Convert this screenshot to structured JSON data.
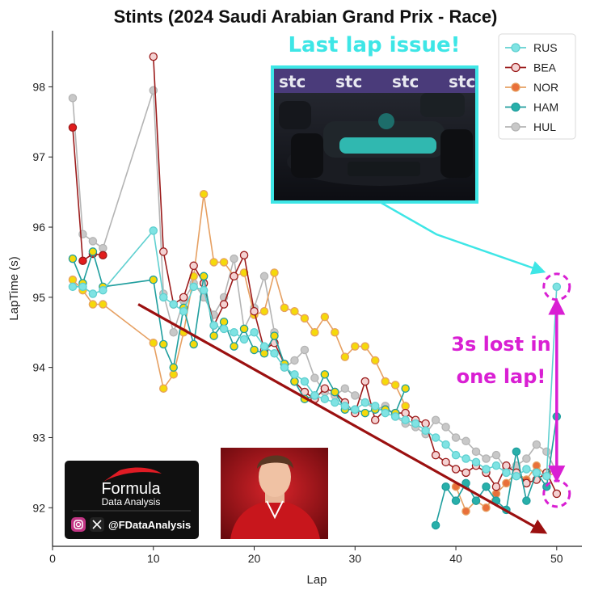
{
  "chart_data": {
    "type": "line",
    "title": "Stints (2024 Saudi Arabian Grand Prix - Race)",
    "xlabel": "Lap",
    "ylabel": "LapTime (s)",
    "xlim": [
      0,
      52.5
    ],
    "ylim": [
      91.45,
      98.8
    ],
    "xticks": [
      0,
      10,
      20,
      30,
      40,
      50
    ],
    "yticks": [
      92,
      93,
      94,
      95,
      96,
      97,
      98
    ],
    "legend_position": "top-right",
    "grid": false,
    "series": [
      {
        "name": "HUL",
        "line_color": "#b4b4b4",
        "segments": [
          {
            "marker_fill": "#c8c8c8",
            "points": [
              [
                2,
                97.84
              ],
              [
                3,
                95.9
              ],
              [
                4,
                95.8
              ],
              [
                5,
                95.7
              ],
              [
                10,
                97.95
              ],
              [
                11,
                95.05
              ],
              [
                12,
                94.5
              ],
              [
                13,
                94.95
              ],
              [
                14,
                95.2
              ],
              [
                15,
                95.0
              ],
              [
                16,
                94.75
              ],
              [
                17,
                95.0
              ],
              [
                18,
                95.55
              ],
              [
                19,
                94.55
              ],
              [
                20,
                94.85
              ],
              [
                21,
                95.3
              ],
              [
                22,
                94.5
              ],
              [
                23,
                94.0
              ],
              [
                24,
                94.1
              ],
              [
                25,
                94.25
              ],
              [
                26,
                93.85
              ],
              [
                27,
                93.65
              ],
              [
                28,
                93.6
              ],
              [
                29,
                93.7
              ],
              [
                30,
                93.6
              ],
              [
                31,
                93.5
              ],
              [
                32,
                93.4
              ],
              [
                33,
                93.45
              ],
              [
                34,
                93.3
              ],
              [
                35,
                93.2
              ],
              [
                36,
                93.15
              ],
              [
                37,
                93.05
              ],
              [
                38,
                93.25
              ],
              [
                39,
                93.15
              ],
              [
                40,
                93.0
              ],
              [
                41,
                92.95
              ],
              [
                42,
                92.8
              ],
              [
                43,
                92.7
              ],
              [
                44,
                92.75
              ],
              [
                45,
                92.55
              ],
              [
                46,
                92.6
              ],
              [
                47,
                92.7
              ],
              [
                48,
                92.9
              ],
              [
                49,
                92.8
              ],
              [
                50,
                92.5
              ]
            ]
          }
        ]
      },
      {
        "name": "NOR",
        "line_color": "#e6a062",
        "segments": [
          {
            "marker_fill": "#f5d90a",
            "points": [
              [
                2,
                95.25
              ],
              [
                3,
                95.1
              ],
              [
                4,
                94.9
              ],
              [
                5,
                94.9
              ],
              [
                10,
                94.35
              ],
              [
                11,
                93.7
              ],
              [
                12,
                93.9
              ],
              [
                13,
                94.5
              ],
              [
                14,
                95.3
              ],
              [
                15,
                96.47
              ],
              [
                16,
                95.5
              ],
              [
                17,
                95.5
              ],
              [
                18,
                95.3
              ],
              [
                19,
                95.35
              ],
              [
                20,
                94.75
              ],
              [
                21,
                94.8
              ],
              [
                22,
                95.35
              ],
              [
                23,
                94.85
              ],
              [
                24,
                94.8
              ],
              [
                25,
                94.7
              ],
              [
                26,
                94.5
              ],
              [
                27,
                94.72
              ],
              [
                28,
                94.5
              ],
              [
                29,
                94.15
              ],
              [
                30,
                94.3
              ],
              [
                31,
                94.3
              ],
              [
                32,
                94.1
              ],
              [
                33,
                93.8
              ],
              [
                34,
                93.75
              ],
              [
                35,
                93.45
              ]
            ]
          },
          {
            "marker_fill": "#e9703a",
            "points": [
              [
                40,
                92.3
              ],
              [
                41,
                91.95
              ],
              [
                42,
                92.1
              ],
              [
                43,
                92.0
              ],
              [
                44,
                92.2
              ],
              [
                45,
                92.35
              ],
              [
                46,
                92.5
              ],
              [
                47,
                92.4
              ],
              [
                48,
                92.6
              ],
              [
                49,
                92.45
              ],
              [
                50,
                92.5
              ]
            ]
          }
        ]
      },
      {
        "name": "BEA",
        "line_color": "#9b1b1b",
        "segments": [
          {
            "marker_fill": "#e11d1d",
            "points": [
              [
                2,
                97.42
              ],
              [
                3,
                95.52
              ],
              [
                4,
                95.62
              ],
              [
                5,
                95.6
              ]
            ]
          },
          {
            "marker_fill": "#f4d2d2",
            "points": [
              [
                10,
                98.43
              ],
              [
                11,
                95.65
              ],
              [
                12,
                94.9
              ],
              [
                13,
                95.0
              ],
              [
                14,
                95.45
              ],
              [
                15,
                95.2
              ],
              [
                16,
                94.6
              ],
              [
                17,
                94.9
              ],
              [
                18,
                95.3
              ],
              [
                19,
                95.6
              ],
              [
                20,
                94.8
              ],
              [
                21,
                94.25
              ],
              [
                22,
                94.35
              ],
              [
                23,
                94.05
              ],
              [
                24,
                93.8
              ],
              [
                25,
                93.65
              ],
              [
                26,
                93.55
              ],
              [
                27,
                93.7
              ],
              [
                28,
                93.65
              ],
              [
                29,
                93.5
              ],
              [
                30,
                93.35
              ],
              [
                31,
                93.8
              ],
              [
                32,
                93.25
              ],
              [
                33,
                93.4
              ],
              [
                34,
                93.35
              ],
              [
                35,
                93.35
              ],
              [
                36,
                93.25
              ],
              [
                37,
                93.2
              ],
              [
                38,
                92.75
              ],
              [
                39,
                92.65
              ],
              [
                40,
                92.55
              ],
              [
                41,
                92.5
              ],
              [
                42,
                92.6
              ],
              [
                43,
                92.5
              ],
              [
                44,
                92.3
              ],
              [
                45,
                92.6
              ],
              [
                46,
                92.5
              ],
              [
                47,
                92.35
              ],
              [
                48,
                92.4
              ],
              [
                49,
                92.5
              ],
              [
                50,
                92.2
              ]
            ]
          }
        ]
      },
      {
        "name": "HAM",
        "line_color": "#1f9e9e",
        "segments": [
          {
            "marker_fill": "#f5d90a",
            "points": [
              [
                2,
                95.55
              ],
              [
                3,
                95.2
              ],
              [
                4,
                95.65
              ],
              [
                5,
                95.15
              ],
              [
                10,
                95.25
              ],
              [
                11,
                94.33
              ],
              [
                12,
                94.0
              ],
              [
                13,
                94.85
              ],
              [
                14,
                94.33
              ],
              [
                15,
                95.3
              ],
              [
                16,
                94.45
              ],
              [
                17,
                94.65
              ],
              [
                18,
                94.3
              ],
              [
                19,
                94.55
              ],
              [
                20,
                94.25
              ],
              [
                21,
                94.2
              ],
              [
                22,
                94.45
              ],
              [
                23,
                94.05
              ],
              [
                24,
                93.8
              ],
              [
                25,
                93.55
              ],
              [
                26,
                93.6
              ],
              [
                27,
                93.9
              ],
              [
                28,
                93.65
              ],
              [
                29,
                93.4
              ],
              [
                30,
                93.4
              ],
              [
                31,
                93.35
              ],
              [
                32,
                93.4
              ],
              [
                33,
                93.4
              ],
              [
                34,
                93.35
              ],
              [
                35,
                93.7
              ]
            ]
          },
          {
            "marker_fill": "#28b0aa",
            "points": [
              [
                38,
                91.75
              ],
              [
                39,
                92.3
              ],
              [
                40,
                92.1
              ],
              [
                41,
                92.35
              ],
              [
                42,
                92.1
              ],
              [
                43,
                92.3
              ],
              [
                44,
                92.1
              ],
              [
                45,
                91.97
              ],
              [
                46,
                92.8
              ],
              [
                47,
                92.1
              ],
              [
                48,
                92.5
              ],
              [
                49,
                92.3
              ],
              [
                50,
                93.3
              ]
            ]
          }
        ]
      },
      {
        "name": "RUS",
        "line_color": "#5fd0d0",
        "segments": [
          {
            "marker_fill": "#7fe3e3",
            "points": [
              [
                2,
                95.15
              ],
              [
                3,
                95.15
              ],
              [
                4,
                95.05
              ],
              [
                5,
                95.1
              ],
              [
                10,
                95.95
              ],
              [
                11,
                95.0
              ],
              [
                12,
                94.9
              ],
              [
                13,
                94.8
              ],
              [
                14,
                95.15
              ],
              [
                15,
                95.1
              ],
              [
                16,
                94.6
              ],
              [
                17,
                94.55
              ],
              [
                18,
                94.5
              ],
              [
                19,
                94.4
              ],
              [
                20,
                94.5
              ],
              [
                21,
                94.3
              ],
              [
                22,
                94.2
              ],
              [
                23,
                94.0
              ],
              [
                24,
                93.9
              ],
              [
                25,
                93.8
              ],
              [
                26,
                93.6
              ],
              [
                27,
                93.55
              ],
              [
                28,
                93.5
              ],
              [
                29,
                93.45
              ],
              [
                30,
                93.4
              ],
              [
                31,
                93.5
              ],
              [
                32,
                93.45
              ],
              [
                33,
                93.35
              ],
              [
                34,
                93.3
              ],
              [
                35,
                93.25
              ],
              [
                36,
                93.2
              ],
              [
                37,
                93.1
              ],
              [
                38,
                93.0
              ],
              [
                39,
                92.9
              ],
              [
                40,
                92.75
              ],
              [
                41,
                92.7
              ],
              [
                42,
                92.65
              ],
              [
                43,
                92.55
              ],
              [
                44,
                92.6
              ],
              [
                45,
                92.5
              ],
              [
                46,
                92.45
              ],
              [
                47,
                92.55
              ],
              [
                48,
                92.5
              ],
              [
                49,
                92.45
              ],
              [
                50,
                95.15
              ]
            ]
          }
        ]
      }
    ],
    "legend": [
      "RUS",
      "BEA",
      "NOR",
      "HAM",
      "HUL"
    ],
    "annotations": {
      "last_lap_issue": "Last lap issue!",
      "lost_line1": "3s lost in",
      "lost_line2": "one lap!",
      "trend_start": [
        8.5,
        94.9
      ],
      "trend_end": [
        48.8,
        91.65
      ],
      "issue_circle_top": [
        50,
        95.15
      ],
      "issue_circle_bottom": [
        50,
        92.2
      ]
    }
  },
  "branding": {
    "logo_title": "Formula",
    "logo_subtitle": "Data Analysis",
    "handle": "@FDataAnalysis",
    "instagram_icon": "instagram-icon",
    "x_icon": "x-logo-icon"
  },
  "colors": {
    "cyan_callout": "#3ee6e6",
    "magenta_callout": "#d91fd3",
    "trend_arrow": "#9b1010"
  }
}
